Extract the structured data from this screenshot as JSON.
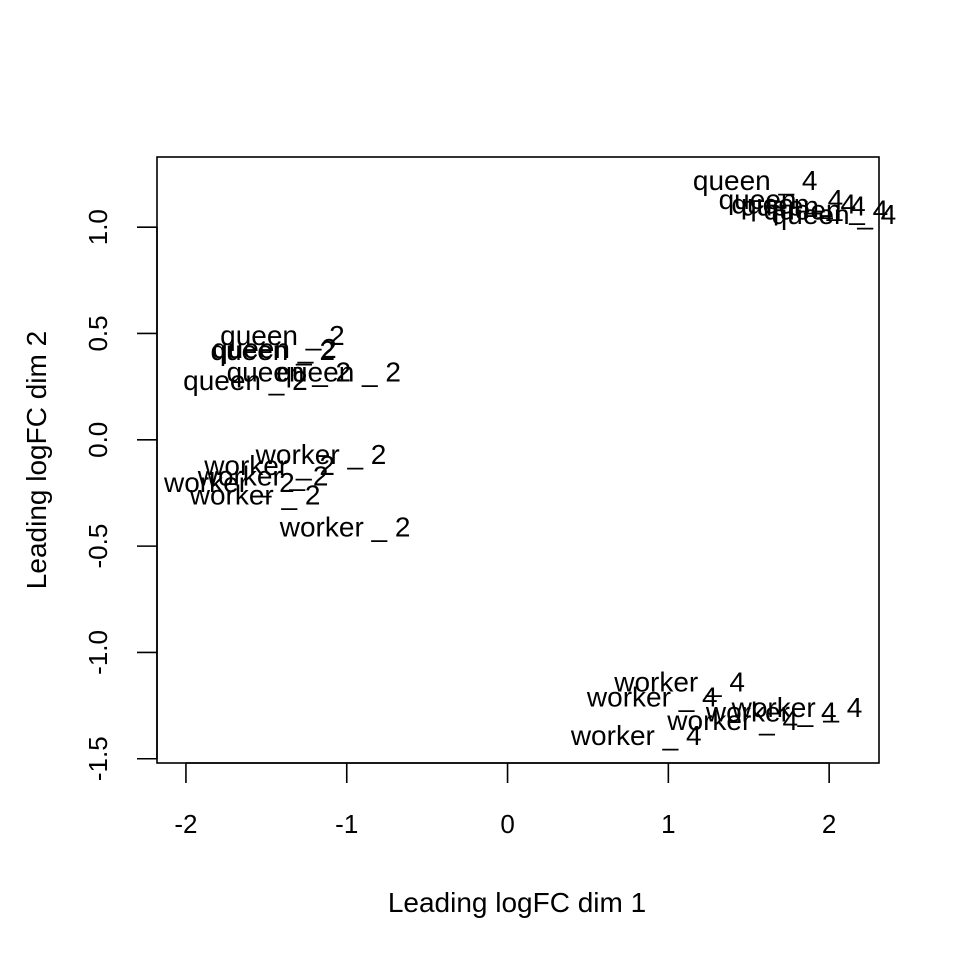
{
  "chart_data": {
    "type": "scatter",
    "title": "",
    "xlabel": "Leading logFC dim 1",
    "ylabel": "Leading logFC dim 2",
    "xlim": [
      -2.18,
      2.31
    ],
    "ylim": [
      -1.52,
      1.33
    ],
    "x_ticks": [
      -2,
      -1,
      0,
      1,
      2
    ],
    "x_tick_labels": [
      "-2",
      "-1",
      "0",
      "1",
      "2"
    ],
    "y_ticks": [
      -1.5,
      -1.0,
      -0.5,
      0.0,
      0.5,
      1.0
    ],
    "y_tick_labels": [
      "-1.5",
      "-1.0",
      "-0.5",
      "0.0",
      "0.5",
      "1.0"
    ],
    "grid": false,
    "point_style": "text labels",
    "points": [
      {
        "label": "queen _ 4",
        "x": 1.54,
        "y": 1.22
      },
      {
        "label": "queen _ 4",
        "x": 1.7,
        "y": 1.13
      },
      {
        "label": "queen _ 4",
        "x": 1.78,
        "y": 1.11
      },
      {
        "label": "queen _ 4",
        "x": 1.84,
        "y": 1.1
      },
      {
        "label": "queen _ 4",
        "x": 1.98,
        "y": 1.08
      },
      {
        "label": "queen _ 4",
        "x": 2.03,
        "y": 1.06
      },
      {
        "label": "queen _ 2",
        "x": -1.4,
        "y": 0.49
      },
      {
        "label": "queen _ 2",
        "x": -1.45,
        "y": 0.43
      },
      {
        "label": "queen _ 2",
        "x": -1.46,
        "y": 0.42
      },
      {
        "label": "queen _ 2",
        "x": -1.05,
        "y": 0.32
      },
      {
        "label": "queen _ 2",
        "x": -1.36,
        "y": 0.32
      },
      {
        "label": "queen _ 2",
        "x": -1.63,
        "y": 0.28
      },
      {
        "label": "worker _ 2",
        "x": -1.16,
        "y": -0.07
      },
      {
        "label": "worker _ 2",
        "x": -1.48,
        "y": -0.12
      },
      {
        "label": "worker _ 2",
        "x": -1.52,
        "y": -0.17
      },
      {
        "label": "worker _ 2",
        "x": -1.73,
        "y": -0.2
      },
      {
        "label": "worker _ 2",
        "x": -1.57,
        "y": -0.26
      },
      {
        "label": "worker _ 2",
        "x": -1.01,
        "y": -0.41
      },
      {
        "label": "worker _ 4",
        "x": 1.07,
        "y": -1.14
      },
      {
        "label": "worker _ 4",
        "x": 0.9,
        "y": -1.21
      },
      {
        "label": "worker _ 4",
        "x": 1.8,
        "y": -1.26
      },
      {
        "label": "worker _ 4",
        "x": 1.64,
        "y": -1.28
      },
      {
        "label": "worker _ 4",
        "x": 1.4,
        "y": -1.32
      },
      {
        "label": "worker _ 4",
        "x": 0.8,
        "y": -1.39
      }
    ]
  }
}
